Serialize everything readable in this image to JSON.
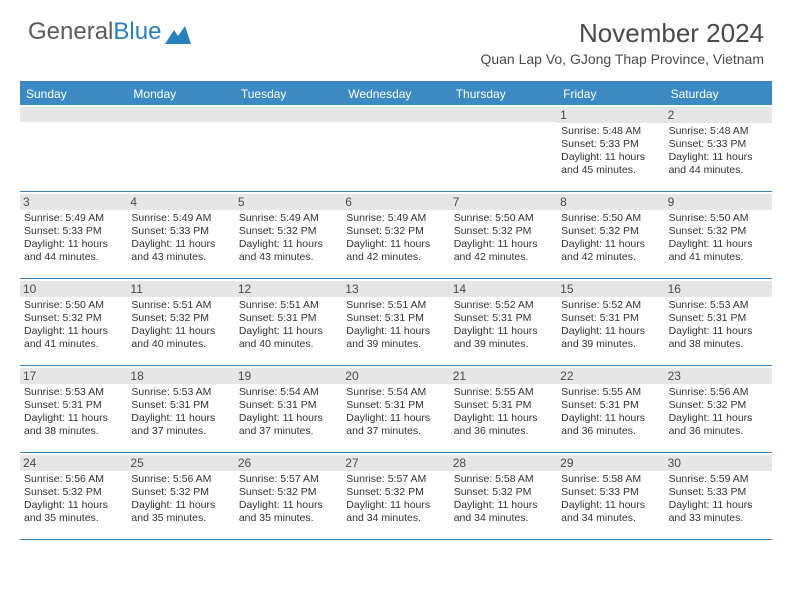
{
  "logo": {
    "text1": "General",
    "text2": "Blue"
  },
  "title": "November 2024",
  "subtitle": "Quan Lap Vo, GJong Thap Province, Vietnam",
  "colors": {
    "header_bar": "#3b8ac4",
    "rule": "#3b7fb5",
    "daynum_bg": "#e6e6e6",
    "text": "#333333",
    "title_text": "#4a4a4a"
  },
  "weekdays": [
    "Sunday",
    "Monday",
    "Tuesday",
    "Wednesday",
    "Thursday",
    "Friday",
    "Saturday"
  ],
  "weeks": [
    [
      null,
      null,
      null,
      null,
      null,
      {
        "n": "1",
        "sr": "5:48 AM",
        "ss": "5:33 PM",
        "dl": "11 hours and 45 minutes."
      },
      {
        "n": "2",
        "sr": "5:48 AM",
        "ss": "5:33 PM",
        "dl": "11 hours and 44 minutes."
      }
    ],
    [
      {
        "n": "3",
        "sr": "5:49 AM",
        "ss": "5:33 PM",
        "dl": "11 hours and 44 minutes."
      },
      {
        "n": "4",
        "sr": "5:49 AM",
        "ss": "5:33 PM",
        "dl": "11 hours and 43 minutes."
      },
      {
        "n": "5",
        "sr": "5:49 AM",
        "ss": "5:32 PM",
        "dl": "11 hours and 43 minutes."
      },
      {
        "n": "6",
        "sr": "5:49 AM",
        "ss": "5:32 PM",
        "dl": "11 hours and 42 minutes."
      },
      {
        "n": "7",
        "sr": "5:50 AM",
        "ss": "5:32 PM",
        "dl": "11 hours and 42 minutes."
      },
      {
        "n": "8",
        "sr": "5:50 AM",
        "ss": "5:32 PM",
        "dl": "11 hours and 42 minutes."
      },
      {
        "n": "9",
        "sr": "5:50 AM",
        "ss": "5:32 PM",
        "dl": "11 hours and 41 minutes."
      }
    ],
    [
      {
        "n": "10",
        "sr": "5:50 AM",
        "ss": "5:32 PM",
        "dl": "11 hours and 41 minutes."
      },
      {
        "n": "11",
        "sr": "5:51 AM",
        "ss": "5:32 PM",
        "dl": "11 hours and 40 minutes."
      },
      {
        "n": "12",
        "sr": "5:51 AM",
        "ss": "5:31 PM",
        "dl": "11 hours and 40 minutes."
      },
      {
        "n": "13",
        "sr": "5:51 AM",
        "ss": "5:31 PM",
        "dl": "11 hours and 39 minutes."
      },
      {
        "n": "14",
        "sr": "5:52 AM",
        "ss": "5:31 PM",
        "dl": "11 hours and 39 minutes."
      },
      {
        "n": "15",
        "sr": "5:52 AM",
        "ss": "5:31 PM",
        "dl": "11 hours and 39 minutes."
      },
      {
        "n": "16",
        "sr": "5:53 AM",
        "ss": "5:31 PM",
        "dl": "11 hours and 38 minutes."
      }
    ],
    [
      {
        "n": "17",
        "sr": "5:53 AM",
        "ss": "5:31 PM",
        "dl": "11 hours and 38 minutes."
      },
      {
        "n": "18",
        "sr": "5:53 AM",
        "ss": "5:31 PM",
        "dl": "11 hours and 37 minutes."
      },
      {
        "n": "19",
        "sr": "5:54 AM",
        "ss": "5:31 PM",
        "dl": "11 hours and 37 minutes."
      },
      {
        "n": "20",
        "sr": "5:54 AM",
        "ss": "5:31 PM",
        "dl": "11 hours and 37 minutes."
      },
      {
        "n": "21",
        "sr": "5:55 AM",
        "ss": "5:31 PM",
        "dl": "11 hours and 36 minutes."
      },
      {
        "n": "22",
        "sr": "5:55 AM",
        "ss": "5:31 PM",
        "dl": "11 hours and 36 minutes."
      },
      {
        "n": "23",
        "sr": "5:56 AM",
        "ss": "5:32 PM",
        "dl": "11 hours and 36 minutes."
      }
    ],
    [
      {
        "n": "24",
        "sr": "5:56 AM",
        "ss": "5:32 PM",
        "dl": "11 hours and 35 minutes."
      },
      {
        "n": "25",
        "sr": "5:56 AM",
        "ss": "5:32 PM",
        "dl": "11 hours and 35 minutes."
      },
      {
        "n": "26",
        "sr": "5:57 AM",
        "ss": "5:32 PM",
        "dl": "11 hours and 35 minutes."
      },
      {
        "n": "27",
        "sr": "5:57 AM",
        "ss": "5:32 PM",
        "dl": "11 hours and 34 minutes."
      },
      {
        "n": "28",
        "sr": "5:58 AM",
        "ss": "5:32 PM",
        "dl": "11 hours and 34 minutes."
      },
      {
        "n": "29",
        "sr": "5:58 AM",
        "ss": "5:33 PM",
        "dl": "11 hours and 34 minutes."
      },
      {
        "n": "30",
        "sr": "5:59 AM",
        "ss": "5:33 PM",
        "dl": "11 hours and 33 minutes."
      }
    ]
  ],
  "labels": {
    "sunrise": "Sunrise: ",
    "sunset": "Sunset: ",
    "daylight": "Daylight: "
  }
}
